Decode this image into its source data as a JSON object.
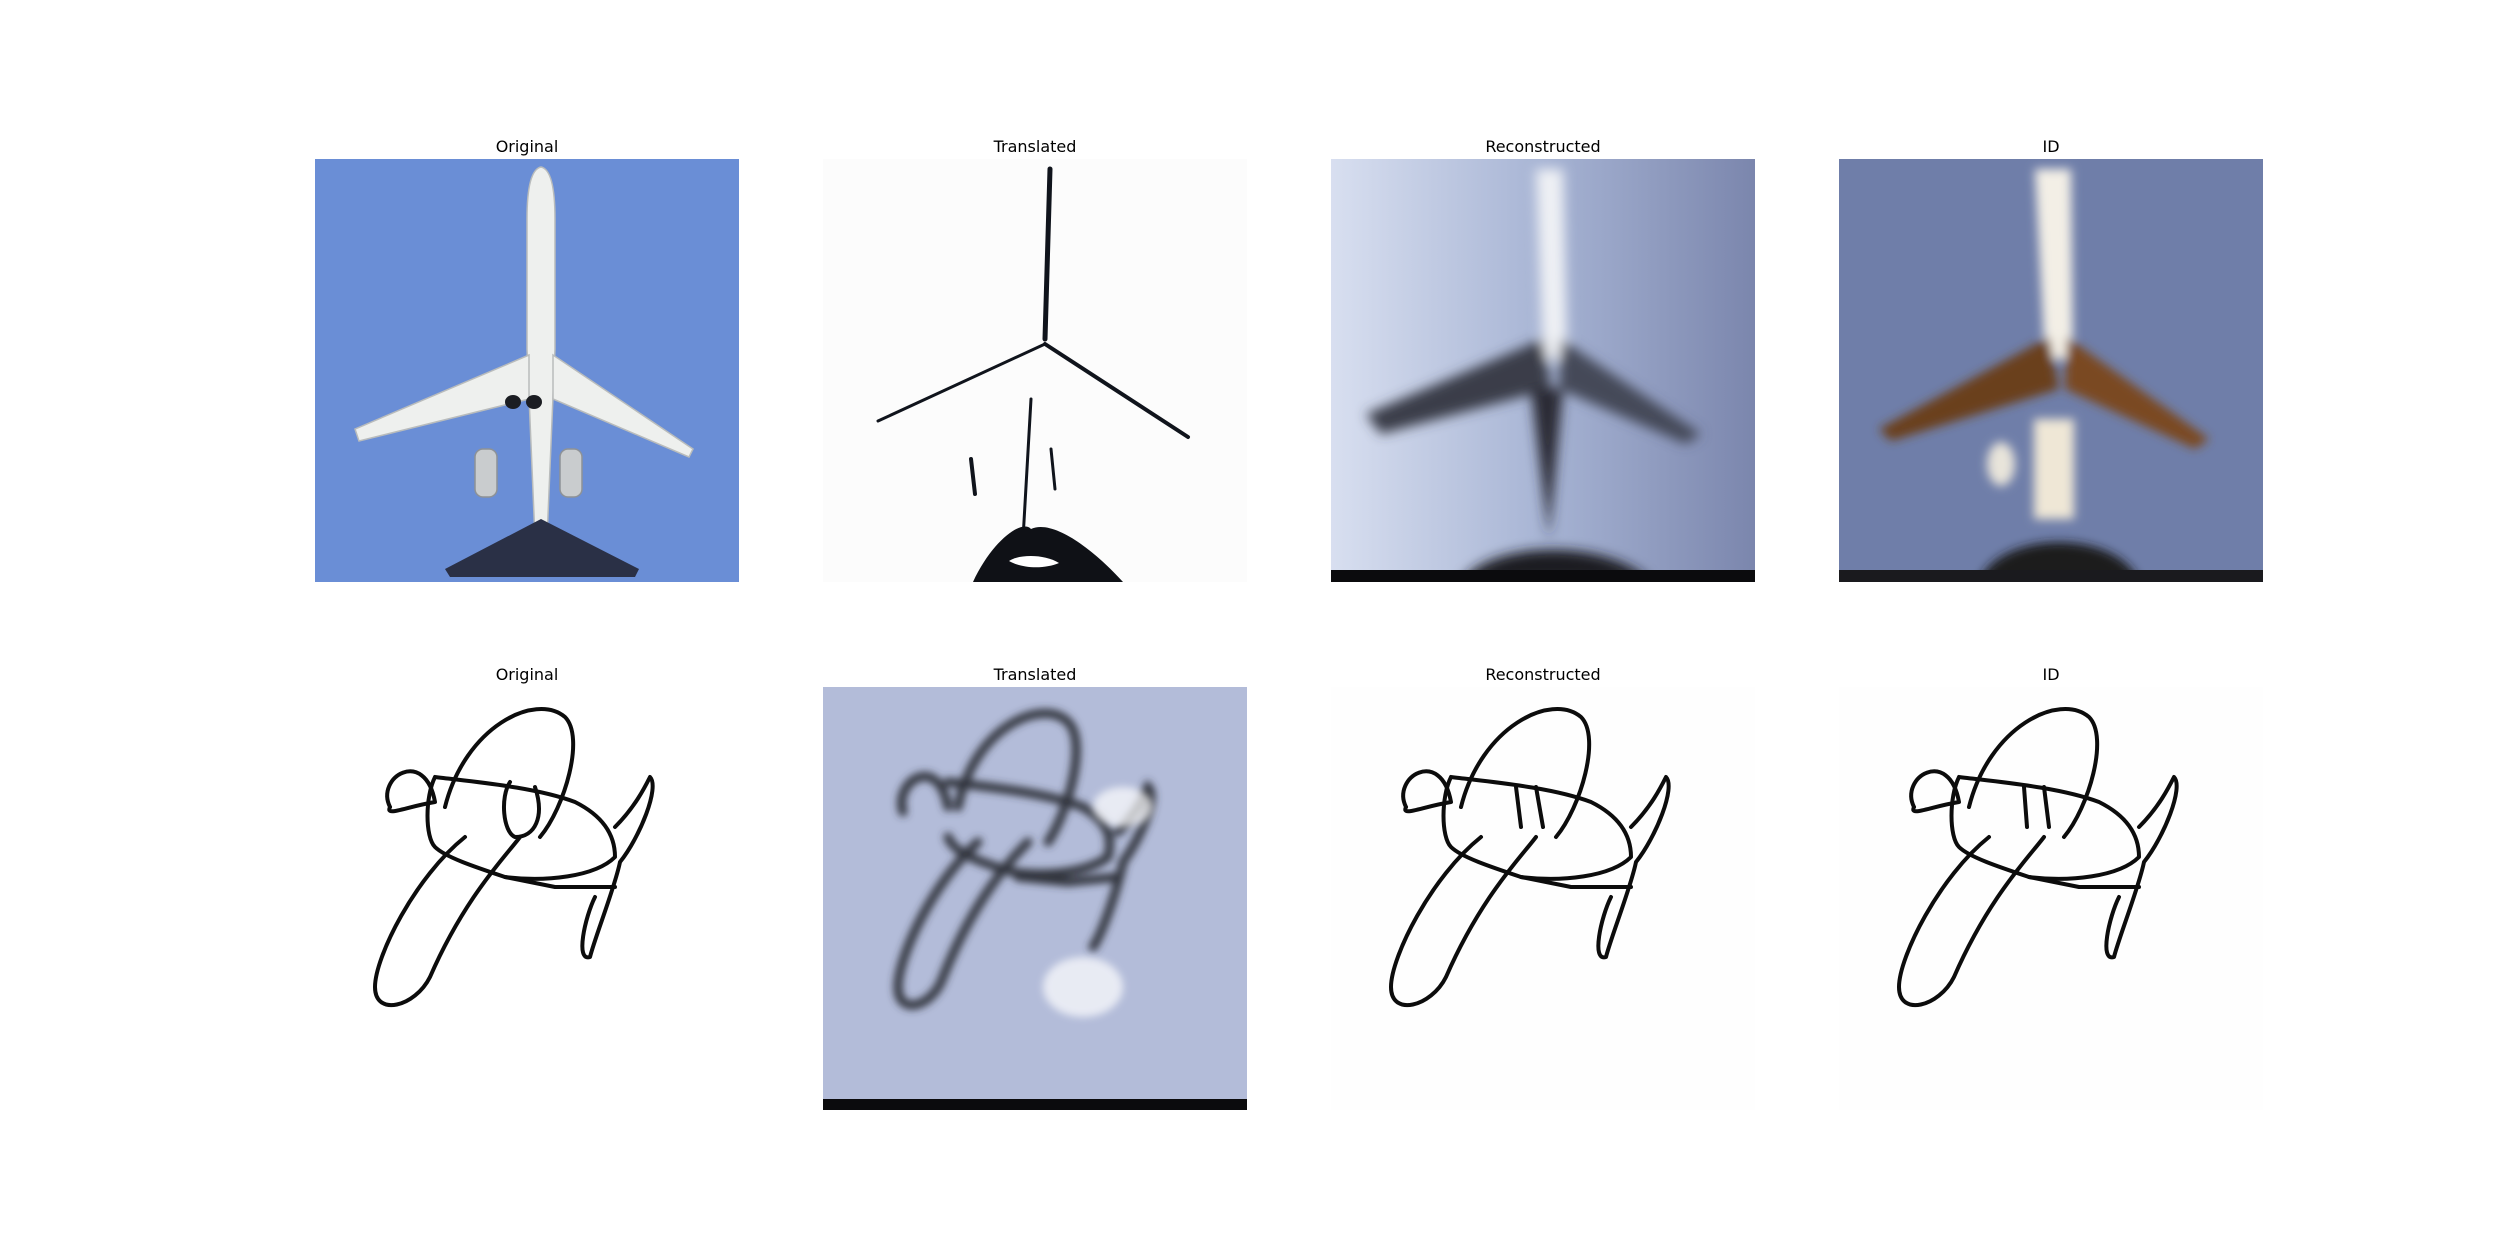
{
  "rows": [
    {
      "subject": "photo of passenger jet from below",
      "panels": [
        {
          "title": "Original",
          "image": "airliner-photo"
        },
        {
          "title": "Translated",
          "image": "airliner-sketch-translation"
        },
        {
          "title": "Reconstructed",
          "image": "airliner-reconstruction"
        },
        {
          "title": "ID",
          "image": "airliner-identity"
        }
      ]
    },
    {
      "subject": "line drawing of propeller plane",
      "panels": [
        {
          "title": "Original",
          "image": "propeller-plane-sketch"
        },
        {
          "title": "Translated",
          "image": "propeller-plane-photo-translation"
        },
        {
          "title": "Reconstructed",
          "image": "propeller-plane-reconstruction"
        },
        {
          "title": "ID",
          "image": "propeller-plane-identity"
        }
      ]
    }
  ]
}
